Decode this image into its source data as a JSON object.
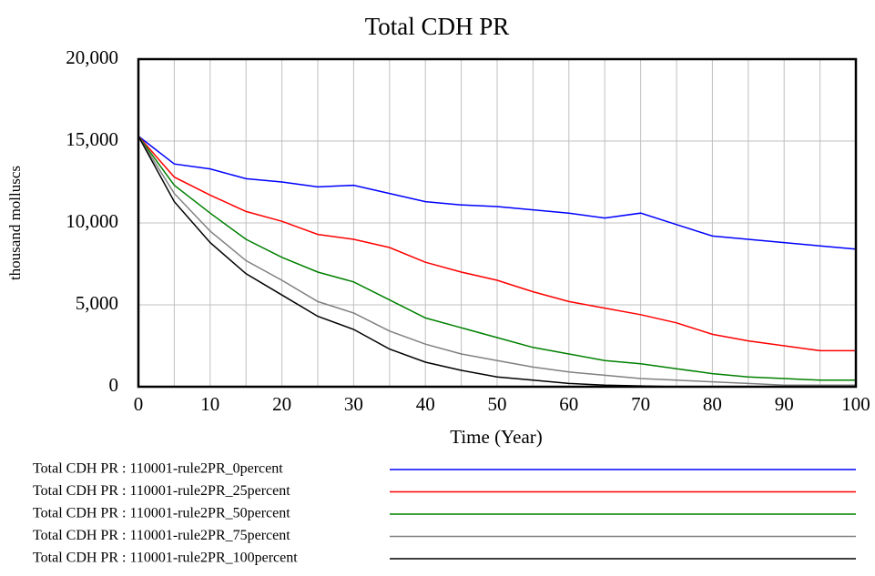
{
  "chart_data": {
    "type": "line",
    "title": "Total CDH PR",
    "x_label": "Time (Year)",
    "y_label": "thousand molluscs",
    "x": [
      0,
      5,
      10,
      15,
      20,
      25,
      30,
      35,
      40,
      45,
      50,
      55,
      60,
      65,
      70,
      75,
      80,
      85,
      90,
      95,
      100
    ],
    "series": [
      {
        "name": "Total CDH PR : 110001-rule2PR_0percent",
        "color": "#0000ff",
        "values": [
          15300,
          13600,
          13300,
          12700,
          12500,
          12200,
          12300,
          11800,
          11300,
          11100,
          11000,
          10800,
          10600,
          10300,
          10600,
          9900,
          9200,
          9000,
          8800,
          8600,
          8400
        ]
      },
      {
        "name": "Total CDH PR : 110001-rule2PR_25percent",
        "color": "#ff0000",
        "values": [
          15300,
          12800,
          11700,
          10700,
          10100,
          9300,
          9000,
          8500,
          7600,
          7000,
          6500,
          5800,
          5200,
          4800,
          4400,
          3900,
          3200,
          2800,
          2500,
          2200,
          2200
        ]
      },
      {
        "name": "Total CDH PR : 110001-rule2PR_50percent",
        "color": "#008000",
        "values": [
          15300,
          12300,
          10600,
          9000,
          7900,
          7000,
          6400,
          5300,
          4200,
          3600,
          3000,
          2400,
          2000,
          1600,
          1400,
          1100,
          800,
          600,
          500,
          400,
          400
        ]
      },
      {
        "name": "Total CDH PR : 110001-rule2PR_75percent",
        "color": "#808080",
        "values": [
          15300,
          11800,
          9500,
          7700,
          6500,
          5200,
          4500,
          3400,
          2600,
          2000,
          1600,
          1200,
          900,
          700,
          500,
          400,
          300,
          200,
          100,
          100,
          100
        ]
      },
      {
        "name": "Total CDH PR : 110001-rule2PR_100percent",
        "color": "#000000",
        "values": [
          15300,
          11300,
          8800,
          6900,
          5600,
          4300,
          3500,
          2300,
          1500,
          1000,
          600,
          400,
          200,
          100,
          50,
          0,
          0,
          0,
          0,
          0,
          0
        ]
      }
    ],
    "xlim": [
      0,
      100
    ],
    "xticks": [
      0,
      10,
      20,
      30,
      40,
      50,
      60,
      70,
      80,
      90,
      100
    ],
    "xgrid_ticks": [
      5,
      15,
      25,
      35,
      45,
      55,
      65,
      75,
      85,
      95
    ],
    "ylim": [
      0,
      20000
    ],
    "yticks": [
      {
        "value": 0,
        "label": "0"
      },
      {
        "value": 5000,
        "label": "5,000"
      },
      {
        "value": 10000,
        "label": "10,000"
      },
      {
        "value": 15000,
        "label": "15,000"
      },
      {
        "value": 20000,
        "label": "20,000"
      }
    ],
    "grid": true,
    "legend": "bottom"
  }
}
